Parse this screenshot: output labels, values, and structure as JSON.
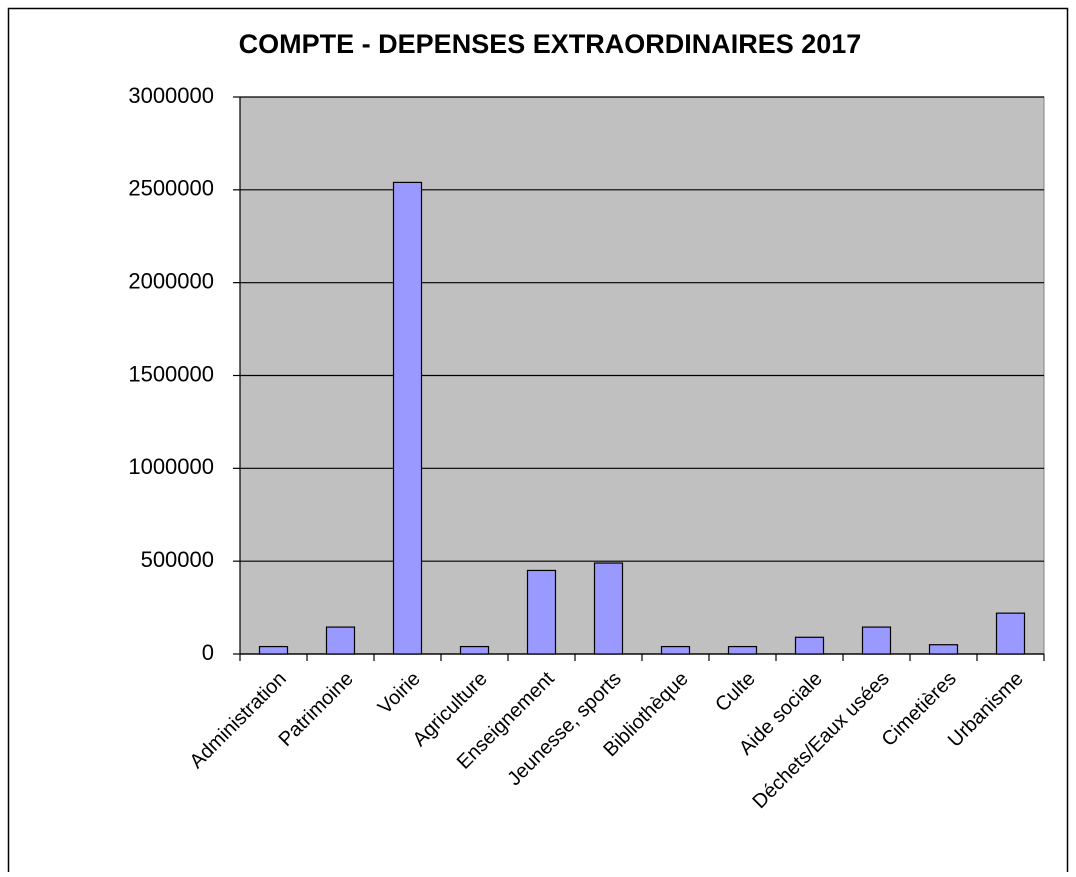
{
  "chart_data": {
    "type": "bar",
    "title": "COMPTE - DEPENSES EXTRAORDINAIRES 2017",
    "categories": [
      "Administration",
      "Patrimoine",
      "Voirie",
      "Agriculture",
      "Enseignement",
      "Jeunesse, sports",
      "Bibliothèque",
      "Culte",
      "Aide sociale",
      "Déchets/Eaux usées",
      "Cimetières",
      "Urbanisme"
    ],
    "values": [
      40000,
      145000,
      2540000,
      40000,
      450000,
      490000,
      40000,
      40000,
      90000,
      145000,
      50000,
      220000
    ],
    "color": "#9999ff",
    "plot_background": "#c0c0c0",
    "ylim": [
      0,
      3000000
    ],
    "yticks": [
      0,
      500000,
      1000000,
      1500000,
      2000000,
      2500000,
      3000000
    ],
    "grid": true
  }
}
